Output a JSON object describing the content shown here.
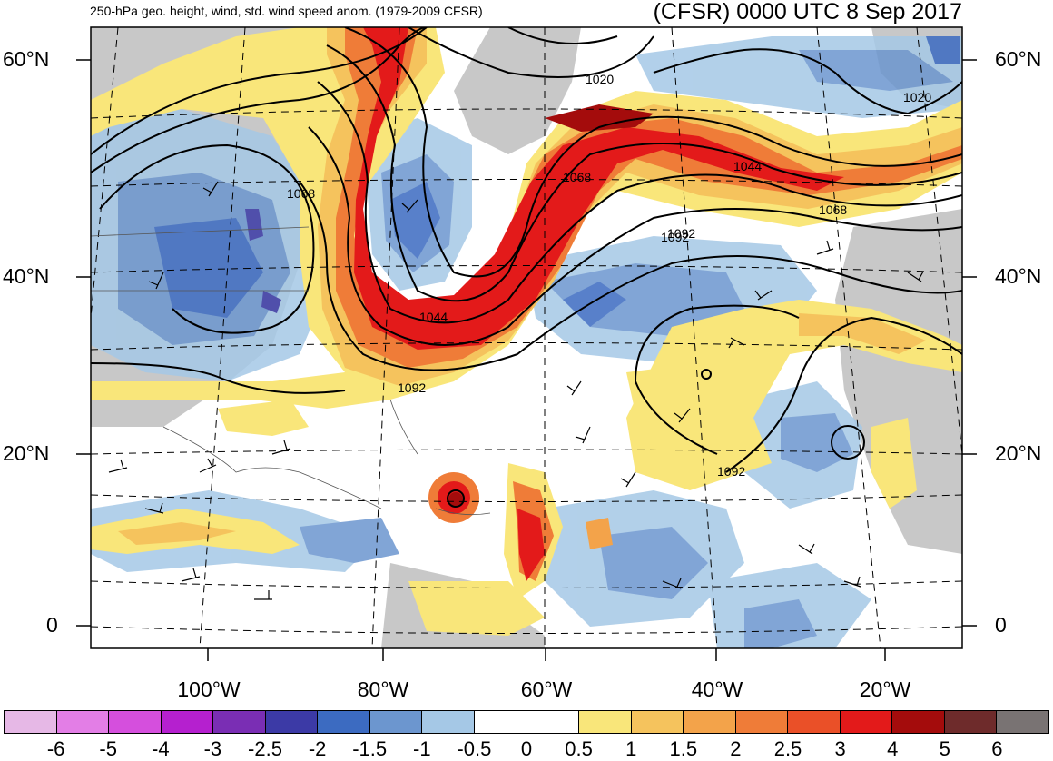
{
  "title_left": "250-hPa geo. height, wind, std. wind speed anom. (1979-2009 CFSR)",
  "title_right": "(CFSR) 0000 UTC 8 Sep 2017",
  "lat_labels": [
    "60°N",
    "40°N",
    "20°N",
    "0"
  ],
  "lon_labels": [
    "100°W",
    "80°W",
    "60°W",
    "40°W",
    "20°W"
  ],
  "contour_labels": [
    "1020",
    "1020",
    "1044",
    "1044",
    "1068",
    "1068",
    "1068",
    "1092",
    "1092",
    "1092",
    "1092"
  ],
  "colorbar": {
    "ticks": [
      "-6",
      "-5",
      "-4",
      "-3",
      "-2.5",
      "-2",
      "-1.5",
      "-1",
      "-0.5",
      "0",
      "0.5",
      "1",
      "1.5",
      "2",
      "2.5",
      "3",
      "4",
      "5",
      "6"
    ],
    "colors": [
      "#e6b8e6",
      "#e37ee6",
      "#d54fdd",
      "#b520cf",
      "#7a2eb4",
      "#3c3aa6",
      "#3c6bc1",
      "#6c96cf",
      "#a5c8e6",
      "#ffffff",
      "#ffffff",
      "#f9e67a",
      "#f5c35d",
      "#f3a34a",
      "#ef7c38",
      "#ea5028",
      "#e31a1a",
      "#a40c0c",
      "#6e2b2b",
      "#797373"
    ]
  },
  "colors": {
    "land": "#c8c8c8",
    "ocean": "#ffffff",
    "contour": "#000000"
  }
}
